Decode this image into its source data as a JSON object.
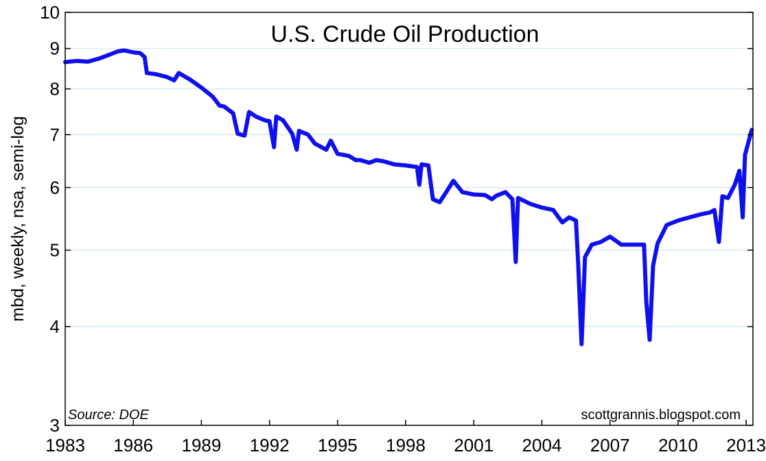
{
  "chart_data": {
    "type": "line",
    "title": "U.S. Crude Oil Production",
    "xlabel": "",
    "ylabel": "mbd, weekly, nsa, semi-log",
    "yscale": "log",
    "ylim": [
      3,
      10
    ],
    "xlim": [
      1983,
      2013.3
    ],
    "yticks": [
      3,
      4,
      5,
      6,
      7,
      8,
      9,
      10
    ],
    "xticks": [
      1983,
      1986,
      1989,
      1992,
      1995,
      1998,
      2001,
      2004,
      2007,
      2010,
      2013
    ],
    "grid": "horizontal",
    "line_color": "#1010ee",
    "gridline_color": "#cfe8f4",
    "source": "Source: DOE",
    "credit": "scottgrannis.blogspot.com",
    "series": [
      {
        "values": [
          [
            1983.0,
            8.65
          ],
          [
            1983.5,
            8.68
          ],
          [
            1984.0,
            8.66
          ],
          [
            1984.5,
            8.74
          ],
          [
            1985.0,
            8.85
          ],
          [
            1985.3,
            8.92
          ],
          [
            1985.6,
            8.95
          ],
          [
            1986.0,
            8.9
          ],
          [
            1986.3,
            8.88
          ],
          [
            1986.5,
            8.78
          ],
          [
            1986.6,
            8.38
          ],
          [
            1987.0,
            8.35
          ],
          [
            1987.5,
            8.28
          ],
          [
            1987.8,
            8.2
          ],
          [
            1988.0,
            8.38
          ],
          [
            1988.5,
            8.22
          ],
          [
            1989.0,
            8.03
          ],
          [
            1989.5,
            7.82
          ],
          [
            1989.8,
            7.62
          ],
          [
            1990.0,
            7.6
          ],
          [
            1990.4,
            7.45
          ],
          [
            1990.6,
            7.02
          ],
          [
            1990.9,
            6.98
          ],
          [
            1991.1,
            7.48
          ],
          [
            1991.4,
            7.38
          ],
          [
            1991.8,
            7.3
          ],
          [
            1992.0,
            7.28
          ],
          [
            1992.2,
            6.75
          ],
          [
            1992.3,
            7.38
          ],
          [
            1992.6,
            7.3
          ],
          [
            1993.0,
            7.02
          ],
          [
            1993.2,
            6.7
          ],
          [
            1993.3,
            7.08
          ],
          [
            1993.7,
            7.0
          ],
          [
            1994.0,
            6.82
          ],
          [
            1994.5,
            6.7
          ],
          [
            1994.7,
            6.88
          ],
          [
            1995.0,
            6.62
          ],
          [
            1995.5,
            6.58
          ],
          [
            1995.8,
            6.5
          ],
          [
            1996.0,
            6.5
          ],
          [
            1996.4,
            6.45
          ],
          [
            1996.7,
            6.5
          ],
          [
            1997.0,
            6.48
          ],
          [
            1997.5,
            6.42
          ],
          [
            1998.0,
            6.4
          ],
          [
            1998.5,
            6.37
          ],
          [
            1998.6,
            6.05
          ],
          [
            1998.7,
            6.42
          ],
          [
            1999.0,
            6.4
          ],
          [
            1999.2,
            5.8
          ],
          [
            1999.5,
            5.75
          ],
          [
            1999.8,
            5.93
          ],
          [
            2000.1,
            6.12
          ],
          [
            2000.5,
            5.92
          ],
          [
            2001.0,
            5.88
          ],
          [
            2001.5,
            5.87
          ],
          [
            2001.8,
            5.8
          ],
          [
            2002.0,
            5.86
          ],
          [
            2002.4,
            5.92
          ],
          [
            2002.7,
            5.8
          ],
          [
            2002.85,
            4.83
          ],
          [
            2002.95,
            5.82
          ],
          [
            2003.5,
            5.72
          ],
          [
            2004.0,
            5.66
          ],
          [
            2004.5,
            5.62
          ],
          [
            2004.9,
            5.42
          ],
          [
            2005.2,
            5.5
          ],
          [
            2005.5,
            5.45
          ],
          [
            2005.6,
            4.8
          ],
          [
            2005.75,
            3.8
          ],
          [
            2005.9,
            4.9
          ],
          [
            2006.2,
            5.08
          ],
          [
            2006.6,
            5.12
          ],
          [
            2007.0,
            5.2
          ],
          [
            2007.5,
            5.08
          ],
          [
            2008.0,
            5.08
          ],
          [
            2008.5,
            5.08
          ],
          [
            2008.6,
            4.3
          ],
          [
            2008.75,
            3.85
          ],
          [
            2008.9,
            4.78
          ],
          [
            2009.1,
            5.1
          ],
          [
            2009.5,
            5.38
          ],
          [
            2010.0,
            5.45
          ],
          [
            2010.5,
            5.5
          ],
          [
            2011.0,
            5.55
          ],
          [
            2011.4,
            5.58
          ],
          [
            2011.6,
            5.62
          ],
          [
            2011.8,
            5.12
          ],
          [
            2011.95,
            5.85
          ],
          [
            2012.2,
            5.82
          ],
          [
            2012.5,
            6.05
          ],
          [
            2012.7,
            6.3
          ],
          [
            2012.85,
            5.5
          ],
          [
            2012.95,
            6.6
          ],
          [
            2013.1,
            6.85
          ],
          [
            2013.25,
            7.1
          ]
        ]
      }
    ]
  }
}
